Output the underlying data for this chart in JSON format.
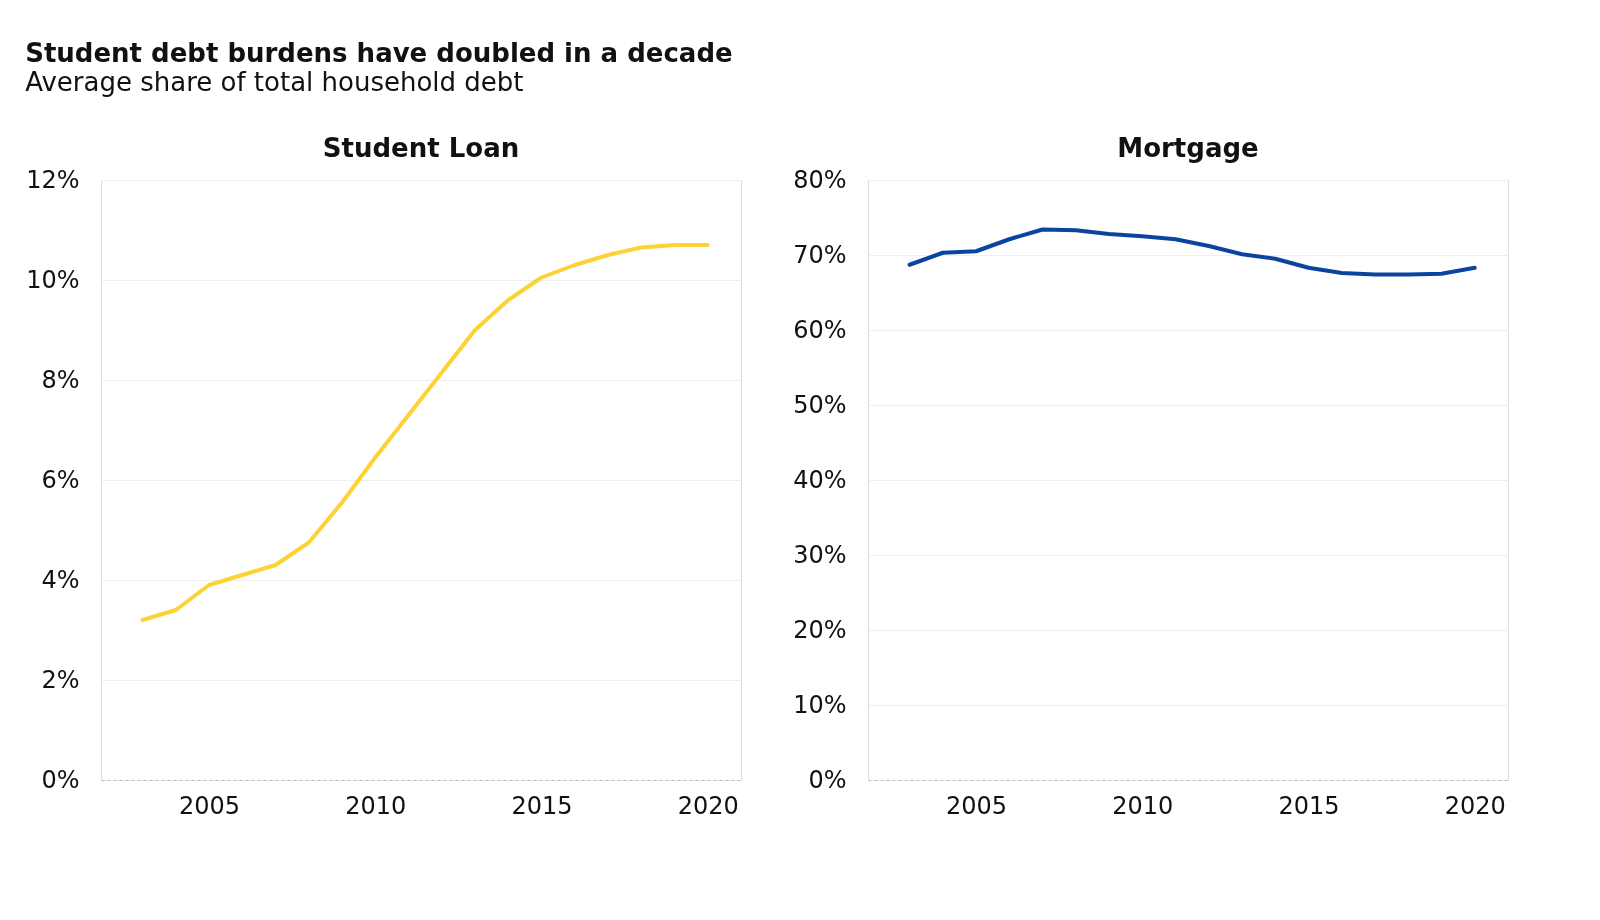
{
  "chart_data": [
    {
      "type": "line",
      "title": "Student Loan",
      "annotations": [
        "Student debt burdens have doubled in a decade",
        "Average share of total household debt"
      ],
      "x": [
        2003,
        2004,
        2005,
        2006,
        2007,
        2008,
        2009,
        2010,
        2011,
        2012,
        2013,
        2014,
        2015,
        2016,
        2017,
        2018,
        2019,
        2020
      ],
      "series": [
        {
          "color": "#fdd235",
          "values": [
            3.2,
            3.4,
            3.9,
            4.1,
            4.3,
            4.75,
            5.55,
            6.45,
            7.3,
            8.15,
            9.0,
            9.6,
            10.05,
            10.3,
            10.5,
            10.65,
            10.7,
            10.7
          ]
        }
      ],
      "xlim": [
        2001.75,
        2021
      ],
      "xticks": [
        2005,
        2010,
        2015,
        2020
      ],
      "ylim": [
        0,
        12
      ],
      "yticks": [
        {
          "value": 0,
          "label": "0%"
        },
        {
          "value": 2,
          "label": "2%"
        },
        {
          "value": 4,
          "label": "4%"
        },
        {
          "value": 6,
          "label": "6%"
        },
        {
          "value": 8,
          "label": "8%"
        },
        {
          "value": 10,
          "label": "10%"
        },
        {
          "value": 12,
          "label": "12%"
        }
      ],
      "grid": "y",
      "marker": "none",
      "line_style": "solid"
    },
    {
      "type": "line",
      "title": "Mortgage",
      "x": [
        2003,
        2004,
        2005,
        2006,
        2007,
        2008,
        2009,
        2010,
        2011,
        2012,
        2013,
        2014,
        2015,
        2016,
        2017,
        2018,
        2019,
        2020
      ],
      "series": [
        {
          "color": "#0b44a0",
          "values": [
            68.7,
            70.3,
            70.5,
            72.1,
            73.4,
            73.3,
            72.8,
            72.5,
            72.1,
            71.2,
            70.1,
            69.5,
            68.3,
            67.6,
            67.4,
            67.4,
            67.5,
            68.3
          ]
        }
      ],
      "xlim": [
        2001.75,
        2021
      ],
      "xticks": [
        2005,
        2010,
        2015,
        2020
      ],
      "ylim": [
        0,
        80
      ],
      "yticks": [
        {
          "value": 0,
          "label": "0%"
        },
        {
          "value": 10,
          "label": "10%"
        },
        {
          "value": 20,
          "label": "20%"
        },
        {
          "value": 30,
          "label": "30%"
        },
        {
          "value": 40,
          "label": "40%"
        },
        {
          "value": 50,
          "label": "50%"
        },
        {
          "value": 60,
          "label": "60%"
        },
        {
          "value": 70,
          "label": "70%"
        },
        {
          "value": 80,
          "label": "80%"
        }
      ],
      "grid": "y",
      "marker": "none",
      "line_style": "solid"
    }
  ]
}
